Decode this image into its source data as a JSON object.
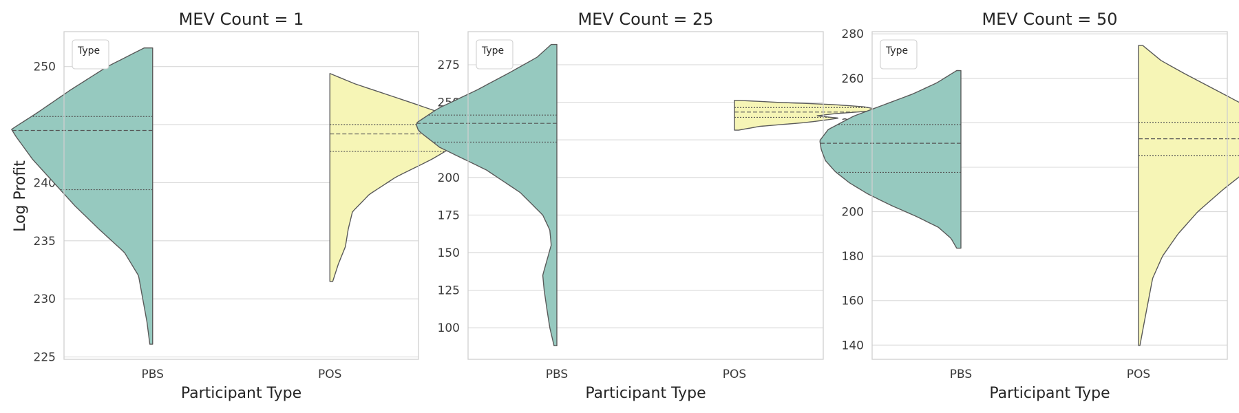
{
  "figure": {
    "ylabel": "Log Profit"
  },
  "chart_data": [
    {
      "type": "violin",
      "title": "MEV Count = 1",
      "xlabel": "Participant Type",
      "ylabel": "Log Profit",
      "ylim": [
        224.8,
        253.0
      ],
      "yticks": [
        225,
        230,
        235,
        240,
        245,
        250
      ],
      "categories": [
        "PBS",
        "POS"
      ],
      "legend": {
        "title": "Type",
        "position": "top-left"
      },
      "grid": true,
      "series": [
        {
          "category": "PBS",
          "side": "left",
          "color": "#96c9bf",
          "range": [
            226.1,
            251.6
          ],
          "quartiles": {
            "q1": 239.4,
            "median": 244.5,
            "q3": 245.7
          },
          "density": [
            [
              226.1,
              0.02
            ],
            [
              228,
              0.04
            ],
            [
              230,
              0.07
            ],
            [
              232,
              0.1
            ],
            [
              234,
              0.2
            ],
            [
              236,
              0.38
            ],
            [
              238,
              0.55
            ],
            [
              240,
              0.7
            ],
            [
              242,
              0.85
            ],
            [
              244,
              0.97
            ],
            [
              244.6,
              1.0
            ],
            [
              246,
              0.82
            ],
            [
              248,
              0.58
            ],
            [
              250,
              0.32
            ],
            [
              251.6,
              0.06
            ]
          ]
        },
        {
          "category": "POS",
          "side": "right",
          "color": "#f6f5b6",
          "range": [
            231.5,
            249.4
          ],
          "quartiles": {
            "q1": 242.7,
            "median": 244.2,
            "q3": 245.0
          },
          "density": [
            [
              231.5,
              0.02
            ],
            [
              233,
              0.06
            ],
            [
              234.5,
              0.11
            ],
            [
              236,
              0.13
            ],
            [
              237.5,
              0.16
            ],
            [
              239,
              0.28
            ],
            [
              240.5,
              0.47
            ],
            [
              242,
              0.72
            ],
            [
              243.5,
              0.93
            ],
            [
              244.4,
              1.0
            ],
            [
              245.5,
              0.91
            ],
            [
              247,
              0.55
            ],
            [
              248.5,
              0.18
            ],
            [
              249.4,
              0.0
            ]
          ]
        }
      ]
    },
    {
      "type": "violin",
      "title": "MEV Count = 25",
      "xlabel": "Participant Type",
      "ylabel": "",
      "ylim": [
        79.0,
        297.0
      ],
      "yticks": [
        100,
        125,
        150,
        175,
        200,
        225,
        250,
        275
      ],
      "categories": [
        "PBS",
        "POS"
      ],
      "legend": {
        "title": "Type",
        "position": "top-left"
      },
      "grid": true,
      "series": [
        {
          "category": "PBS",
          "side": "left",
          "color": "#96c9bf",
          "range": [
            88.0,
            288.5
          ],
          "quartiles": {
            "q1": 223.5,
            "median": 236.0,
            "q3": 241.5
          },
          "density": [
            [
              88,
              0.02
            ],
            [
              100,
              0.05
            ],
            [
              112,
              0.07
            ],
            [
              125,
              0.09
            ],
            [
              135,
              0.1
            ],
            [
              145,
              0.07
            ],
            [
              155,
              0.04
            ],
            [
              165,
              0.05
            ],
            [
              175,
              0.1
            ],
            [
              190,
              0.26
            ],
            [
              205,
              0.5
            ],
            [
              220,
              0.83
            ],
            [
              231,
              0.98
            ],
            [
              236,
              1.0
            ],
            [
              246,
              0.84
            ],
            [
              258,
              0.57
            ],
            [
              270,
              0.33
            ],
            [
              280,
              0.14
            ],
            [
              288.5,
              0.04
            ]
          ]
        },
        {
          "category": "POS",
          "side": "right",
          "color": "#f6f5b6",
          "range": [
            231.5,
            251.3
          ],
          "quartiles": {
            "q1": 240.0,
            "median": 243.5,
            "q3": 246.5
          },
          "density": [
            [
              231.5,
              0.03
            ],
            [
              234,
              0.18
            ],
            [
              236.5,
              0.5
            ],
            [
              238,
              0.63
            ],
            [
              239.5,
              0.74
            ],
            [
              241,
              0.58
            ],
            [
              242.5,
              0.72
            ],
            [
              244,
              0.94
            ],
            [
              245.5,
              1.0
            ],
            [
              247,
              0.92
            ],
            [
              248.5,
              0.7
            ],
            [
              250,
              0.3
            ],
            [
              251.3,
              0.03
            ]
          ]
        }
      ]
    },
    {
      "type": "violin",
      "title": "MEV Count = 50",
      "xlabel": "Participant Type",
      "ylabel": "",
      "ylim": [
        133.6,
        281.0
      ],
      "yticks": [
        140,
        160,
        180,
        200,
        220,
        240,
        260,
        280
      ],
      "categories": [
        "PBS",
        "POS"
      ],
      "legend": {
        "title": "Type",
        "position": "top-left"
      },
      "grid": true,
      "series": [
        {
          "category": "PBS",
          "side": "left",
          "color": "#96c9bf",
          "range": [
            183.6,
            263.5
          ],
          "quartiles": {
            "q1": 217.7,
            "median": 230.8,
            "q3": 239.2
          },
          "density": [
            [
              183.6,
              0.03
            ],
            [
              188,
              0.07
            ],
            [
              193,
              0.16
            ],
            [
              198,
              0.32
            ],
            [
              203,
              0.5
            ],
            [
              208,
              0.66
            ],
            [
              213,
              0.79
            ],
            [
              218,
              0.89
            ],
            [
              223,
              0.96
            ],
            [
              228,
              0.99
            ],
            [
              232,
              1.0
            ],
            [
              237,
              0.94
            ],
            [
              243,
              0.76
            ],
            [
              248,
              0.55
            ],
            [
              253,
              0.34
            ],
            [
              258,
              0.17
            ],
            [
              263.5,
              0.03
            ]
          ]
        },
        {
          "category": "POS",
          "side": "right",
          "color": "#f6f5b6",
          "range": [
            139.8,
            274.8
          ],
          "quartiles": {
            "q1": 225.3,
            "median": 232.8,
            "q3": 240.2
          },
          "density": [
            [
              139.8,
              0.01
            ],
            [
              150,
              0.04
            ],
            [
              160,
              0.07
            ],
            [
              170,
              0.1
            ],
            [
              180,
              0.17
            ],
            [
              190,
              0.28
            ],
            [
              200,
              0.42
            ],
            [
              210,
              0.6
            ],
            [
              220,
              0.8
            ],
            [
              228,
              0.95
            ],
            [
              233,
              1.0
            ],
            [
              240,
              0.94
            ],
            [
              248,
              0.75
            ],
            [
              255,
              0.54
            ],
            [
              262,
              0.33
            ],
            [
              268,
              0.16
            ],
            [
              274.8,
              0.03
            ]
          ]
        }
      ]
    }
  ]
}
